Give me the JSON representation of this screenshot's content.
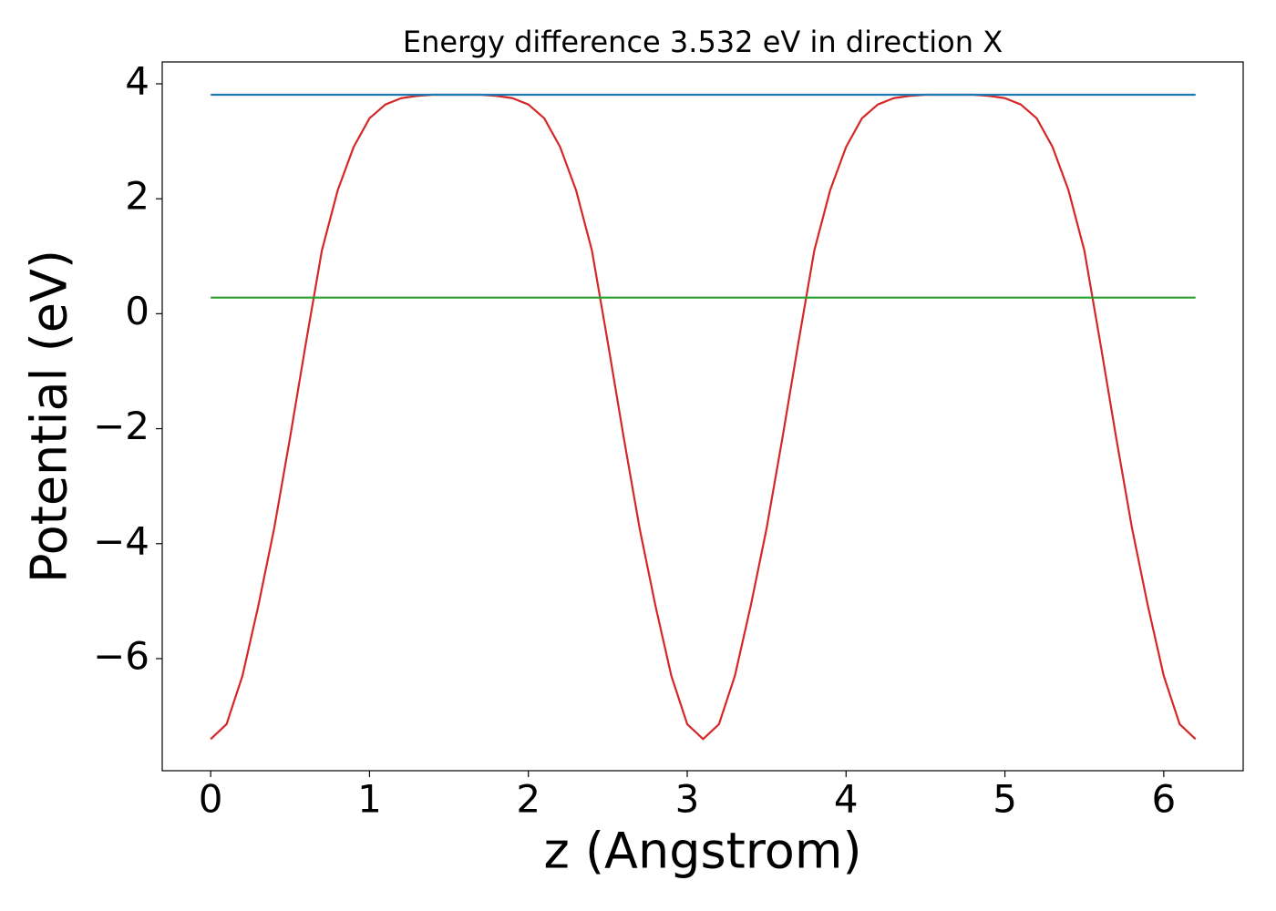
{
  "chart_data": {
    "type": "line",
    "title": "Energy difference 3.532 eV in direction X",
    "xlabel": "z (Angstrom)",
    "ylabel": "Potential (eV)",
    "xlim": [
      -0.305,
      6.5
    ],
    "ylim": [
      -7.95,
      4.38
    ],
    "xticks": [
      0,
      1,
      2,
      3,
      4,
      5,
      6
    ],
    "yticks": [
      {
        "value": -6,
        "label": "−6"
      },
      {
        "value": -4,
        "label": "−4"
      },
      {
        "value": -2,
        "label": "−2"
      },
      0,
      2,
      4
    ],
    "grid": false,
    "series": [
      {
        "color": "#d62728",
        "x": [
          0,
          0.1,
          0.2,
          0.3,
          0.4,
          0.5,
          0.6,
          0.7,
          0.8,
          0.9,
          1.0,
          1.1,
          1.2,
          1.3,
          1.4,
          1.5,
          1.6,
          1.7,
          1.8,
          1.9,
          2.0,
          2.1,
          2.2,
          2.3,
          2.4,
          2.5,
          2.6,
          2.7,
          2.8,
          2.9,
          3.0,
          3.1,
          3.2,
          3.3,
          3.4,
          3.5,
          3.6,
          3.7,
          3.8,
          3.9,
          4.0,
          4.1,
          4.2,
          4.3,
          4.4,
          4.5,
          4.6,
          4.7,
          4.8,
          4.9,
          5.0,
          5.1,
          5.2,
          5.3,
          5.4,
          5.5,
          5.6,
          5.7,
          5.8,
          5.9,
          6.0,
          6.1,
          6.2
        ],
        "values": [
          -7.4,
          -7.14,
          -6.3,
          -5.08,
          -3.73,
          -2.15,
          -0.5,
          1.1,
          2.15,
          2.9,
          3.4,
          3.64,
          3.75,
          3.79,
          3.81,
          3.81,
          3.81,
          3.81,
          3.79,
          3.75,
          3.64,
          3.4,
          2.9,
          2.15,
          1.1,
          -0.5,
          -2.15,
          -3.73,
          -5.08,
          -6.3,
          -7.14,
          -7.4,
          -7.14,
          -6.3,
          -5.08,
          -3.73,
          -2.15,
          -0.5,
          1.1,
          2.15,
          2.9,
          3.4,
          3.64,
          3.75,
          3.79,
          3.81,
          3.81,
          3.81,
          3.81,
          3.79,
          3.75,
          3.64,
          3.4,
          2.9,
          2.15,
          1.1,
          -0.5,
          -2.15,
          -3.73,
          -5.08,
          -6.3,
          -7.14,
          -7.4
        ]
      },
      {
        "color": "#1f77b4",
        "x": [
          0,
          6.2
        ],
        "values": [
          3.81,
          3.81
        ]
      },
      {
        "color": "#2ca02c",
        "x": [
          0,
          6.2
        ],
        "values": [
          0.28,
          0.28
        ]
      }
    ]
  }
}
